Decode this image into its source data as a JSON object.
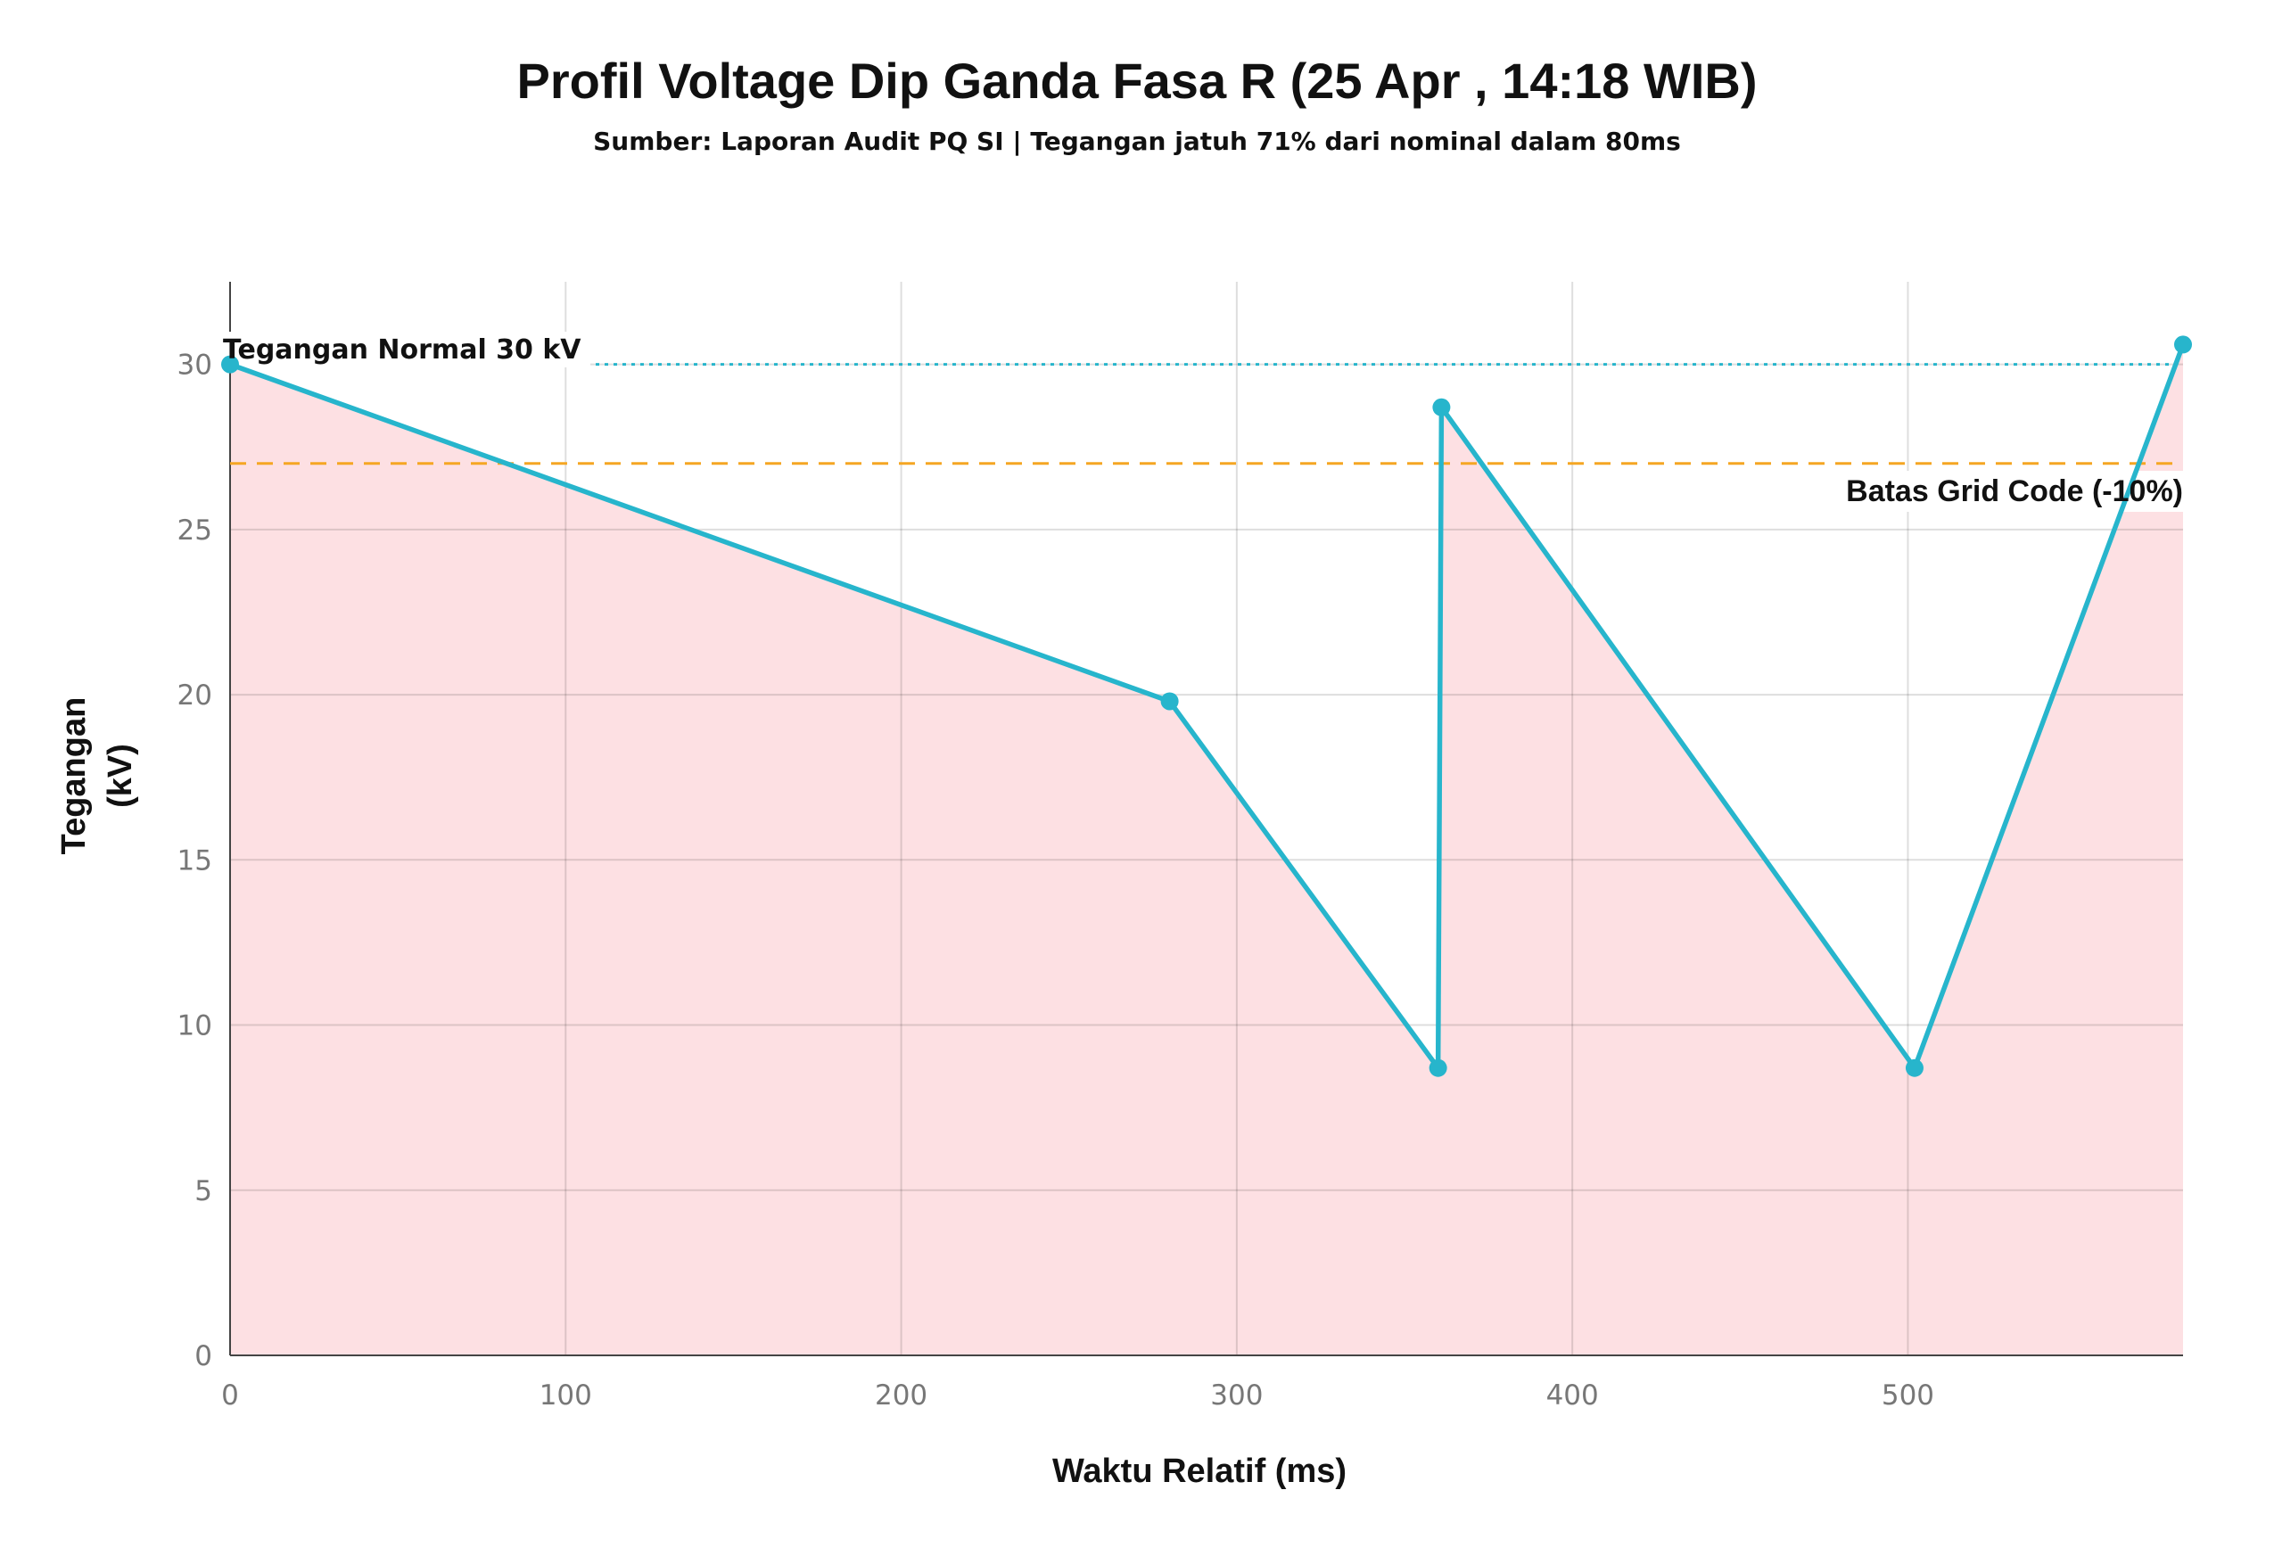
{
  "chart_data": {
    "type": "area",
    "title": "Profil Voltage Dip Ganda Fasa R (25 Apr , 14:18 WIB)",
    "subtitle": "Sumber: Laporan Audit PQ SI | Tegangan jatuh 71% dari nominal dalam 80ms",
    "xlabel": "Waktu Relatif (ms)",
    "ylabel_lines": [
      "Tegangan",
      "(kV)"
    ],
    "xlim": [
      0,
      582
    ],
    "ylim": [
      0,
      32.5
    ],
    "x_ticks": [
      "0",
      "100",
      "200",
      "300",
      "400",
      "500"
    ],
    "x_tick_values": [
      0,
      100,
      200,
      300,
      400,
      500
    ],
    "y_ticks": [
      "0",
      "5",
      "10",
      "15",
      "20",
      "25",
      "30"
    ],
    "y_tick_values": [
      0,
      5,
      10,
      15,
      20,
      25,
      30
    ],
    "grid": true,
    "series": [
      {
        "x": [
          0,
          280,
          360,
          361,
          502,
          582
        ],
        "y": [
          30.0,
          19.8,
          8.7,
          28.7,
          8.7,
          30.6
        ],
        "color": "#27b5cc",
        "fill": "#fde0e3"
      }
    ],
    "reference_lines": [
      {
        "y": 30,
        "label": "Tegangan Normal 30 kV",
        "style": "dotted",
        "color": "#27b5cc"
      },
      {
        "y": 27,
        "label": "Batas Grid Code (-10%)",
        "style": "dashed",
        "color": "#f5a623"
      }
    ]
  }
}
